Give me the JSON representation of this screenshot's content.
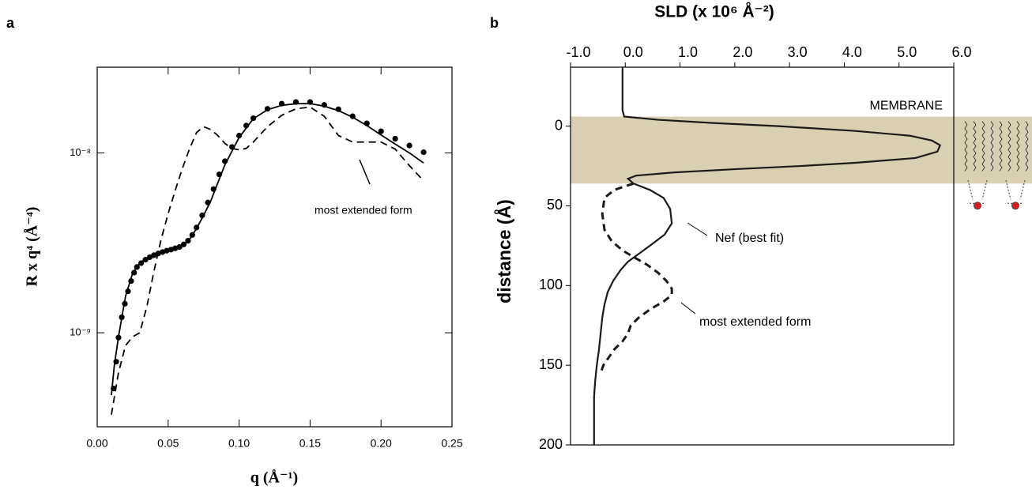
{
  "chart_data": [
    {
      "type": "line",
      "panel_label": "a",
      "x_label": "q  (Å⁻¹)",
      "y_label": "R x q⁴  (Å⁻⁴)",
      "log_y": true,
      "xlim": [
        0,
        0.25
      ],
      "ylim": [
        3e-10,
        3e-08
      ],
      "xticks": [
        {
          "value": 0,
          "label": "0.00"
        },
        {
          "value": 0.05,
          "label": "0.05"
        },
        {
          "value": 0.1,
          "label": "0.10"
        },
        {
          "value": 0.15,
          "label": "0.15"
        },
        {
          "value": 0.2,
          "label": "0.20"
        },
        {
          "value": 0.25,
          "label": "0.25"
        }
      ],
      "yticks": [
        {
          "value": 1e-09,
          "label": "10⁻⁹"
        },
        {
          "value": 1e-08,
          "label": "10⁻⁸"
        }
      ],
      "series": [
        {
          "style": "dots",
          "color": "#000000",
          "x": [
            0.0115,
            0.0134,
            0.015,
            0.0173,
            0.0195,
            0.0217,
            0.0239,
            0.026,
            0.028,
            0.031,
            0.034,
            0.037,
            0.04,
            0.043,
            0.046,
            0.049,
            0.052,
            0.055,
            0.058,
            0.061,
            0.064,
            0.067,
            0.07,
            0.074,
            0.078,
            0.082,
            0.086,
            0.09,
            0.095,
            0.1,
            0.105,
            0.11,
            0.12,
            0.13,
            0.14,
            0.15,
            0.16,
            0.17,
            0.18,
            0.19,
            0.2,
            0.21,
            0.22,
            0.23
          ],
          "values": [
            4.9e-10,
            6.9e-10,
            9.4e-10,
            1.22e-09,
            1.45e-09,
            1.7e-09,
            1.94e-09,
            2.16e-09,
            2.32e-09,
            2.44e-09,
            2.55e-09,
            2.63e-09,
            2.7e-09,
            2.76e-09,
            2.81e-09,
            2.86e-09,
            2.9e-09,
            2.95e-09,
            3e-09,
            3.1e-09,
            3.25e-09,
            3.5e-09,
            3.85e-09,
            4.5e-09,
            5.3e-09,
            6.3e-09,
            7.6e-09,
            9e-09,
            1.08e-08,
            1.25e-08,
            1.42e-08,
            1.56e-08,
            1.76e-08,
            1.88e-08,
            1.92e-08,
            1.92e-08,
            1.85e-08,
            1.75e-08,
            1.6e-08,
            1.46e-08,
            1.32e-08,
            1.2e-08,
            1.1e-08,
            1.01e-08
          ]
        },
        {
          "style": "solid",
          "color": "#000000",
          "x": [
            0.01,
            0.012,
            0.015,
            0.02,
            0.025,
            0.03,
            0.035,
            0.04,
            0.05,
            0.06,
            0.065,
            0.07,
            0.075,
            0.08,
            0.09,
            0.1,
            0.11,
            0.12,
            0.13,
            0.14,
            0.15,
            0.16,
            0.17,
            0.18,
            0.19,
            0.2,
            0.21,
            0.22,
            0.23
          ],
          "values": [
            4.5e-10,
            6.5e-10,
            9.5e-10,
            1.6e-09,
            2.15e-09,
            2.45e-09,
            2.6e-09,
            2.72e-09,
            2.88e-09,
            3.05e-09,
            3.3e-09,
            3.8e-09,
            4.5e-09,
            5.4e-09,
            8.6e-09,
            1.22e-08,
            1.55e-08,
            1.74e-08,
            1.84e-08,
            1.88e-08,
            1.88e-08,
            1.82e-08,
            1.72e-08,
            1.58e-08,
            1.42e-08,
            1.26e-08,
            1.12e-08,
            1e-08,
            8.8e-09
          ]
        },
        {
          "style": "dashed",
          "color": "#000000",
          "name": "most extended form",
          "x": [
            0.01,
            0.015,
            0.02,
            0.025,
            0.03,
            0.035,
            0.04,
            0.045,
            0.05,
            0.055,
            0.06,
            0.065,
            0.07,
            0.075,
            0.08,
            0.085,
            0.09,
            0.095,
            0.1,
            0.105,
            0.11,
            0.12,
            0.13,
            0.14,
            0.15,
            0.16,
            0.17,
            0.18,
            0.19,
            0.2,
            0.21,
            0.22,
            0.23
          ],
          "values": [
            3.5e-10,
            6e-10,
            8.5e-10,
            9.5e-10,
            1e-09,
            1.4e-09,
            2.2e-09,
            3.3e-09,
            4.6e-09,
            6.2e-09,
            8.2e-09,
            1.05e-08,
            1.3e-08,
            1.4e-08,
            1.35e-08,
            1.25e-08,
            1.13e-08,
            1.06e-08,
            1.04e-08,
            1.06e-08,
            1.15e-08,
            1.4e-08,
            1.62e-08,
            1.76e-08,
            1.8e-08,
            1.6e-08,
            1.25e-08,
            1.15e-08,
            1.15e-08,
            1.15e-08,
            1.05e-08,
            8.5e-09,
            7e-09
          ]
        }
      ]
    },
    {
      "type": "profile",
      "panel_label": "b",
      "x_label": "SLD  (x 10⁶  Å⁻²)",
      "y_label": "distance  (Å)",
      "xlim": [
        -1,
        6
      ],
      "ylim": [
        -37,
        200
      ],
      "y_inverted": true,
      "xticks": [
        {
          "value": -1,
          "label": "-1.0"
        },
        {
          "value": 0,
          "label": "0.0"
        },
        {
          "value": 1,
          "label": "1.0"
        },
        {
          "value": 2,
          "label": "2.0"
        },
        {
          "value": 3,
          "label": "3.0"
        },
        {
          "value": 4,
          "label": "4.0"
        },
        {
          "value": 5,
          "label": "5.0"
        },
        {
          "value": 6,
          "label": "6.0"
        }
      ],
      "yticks": [
        0,
        50,
        100,
        150,
        200
      ],
      "band": [
        -6,
        36
      ],
      "band_label": "MEMBRANE",
      "band_color": "#d9d0b4",
      "series": [
        {
          "style": "solid",
          "color": "#1a1a1a",
          "name": "Nef (best fit)",
          "distance": [
            -37,
            -10,
            -6,
            -4,
            -2,
            0,
            3,
            6,
            9,
            12,
            16,
            20,
            23,
            25,
            27,
            29,
            31,
            33,
            36,
            40,
            45,
            52,
            61,
            68,
            75,
            80,
            85,
            90,
            97,
            104,
            112,
            120,
            130,
            140,
            150,
            160,
            170,
            185,
            200
          ],
          "values": [
            -0.05,
            -0.05,
            -0.02,
            0.6,
            1.6,
            2.8,
            4.2,
            5.2,
            5.6,
            5.75,
            5.7,
            5.3,
            4.2,
            3.2,
            2.0,
            0.9,
            0.2,
            0.05,
            0.15,
            0.45,
            0.7,
            0.82,
            0.85,
            0.72,
            0.45,
            0.25,
            0.05,
            -0.08,
            -0.22,
            -0.32,
            -0.38,
            -0.42,
            -0.45,
            -0.48,
            -0.52,
            -0.55,
            -0.57,
            -0.57,
            -0.57
          ]
        },
        {
          "style": "dashed",
          "color": "#1a1a1a",
          "name": "most extended form",
          "distance": [
            36,
            40,
            45,
            55,
            65,
            72,
            78,
            82,
            87,
            92,
            97,
            102,
            106,
            110,
            115,
            120,
            125,
            130,
            135,
            140,
            145,
            150,
            155
          ],
          "values": [
            0.15,
            -0.2,
            -0.38,
            -0.42,
            -0.38,
            -0.25,
            -0.05,
            0.15,
            0.4,
            0.6,
            0.75,
            0.85,
            0.85,
            0.7,
            0.45,
            0.25,
            0.1,
            0.05,
            -0.05,
            -0.2,
            -0.3,
            -0.4,
            -0.45
          ]
        }
      ]
    }
  ]
}
